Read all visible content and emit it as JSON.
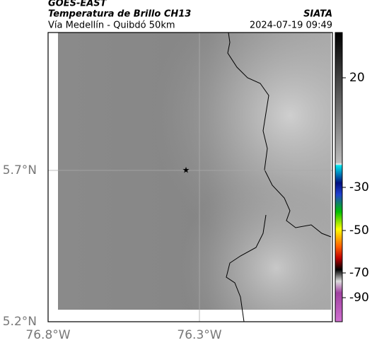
{
  "header": {
    "satellite": "GOES-EAST",
    "title": "Temperatura de Brillo CH13",
    "source": "SIATA",
    "subtitle": "Vía Medellín - Quibdó 50km",
    "timestamp": "2024-07-19 09:49"
  },
  "map": {
    "lat_labels": [
      "5.7°N",
      "5.2°N"
    ],
    "lon_labels": [
      "76.8°W",
      "76.3°W"
    ]
  },
  "colorbar": {
    "ticks": [
      20,
      -30,
      -50,
      -70,
      -90
    ]
  }
}
